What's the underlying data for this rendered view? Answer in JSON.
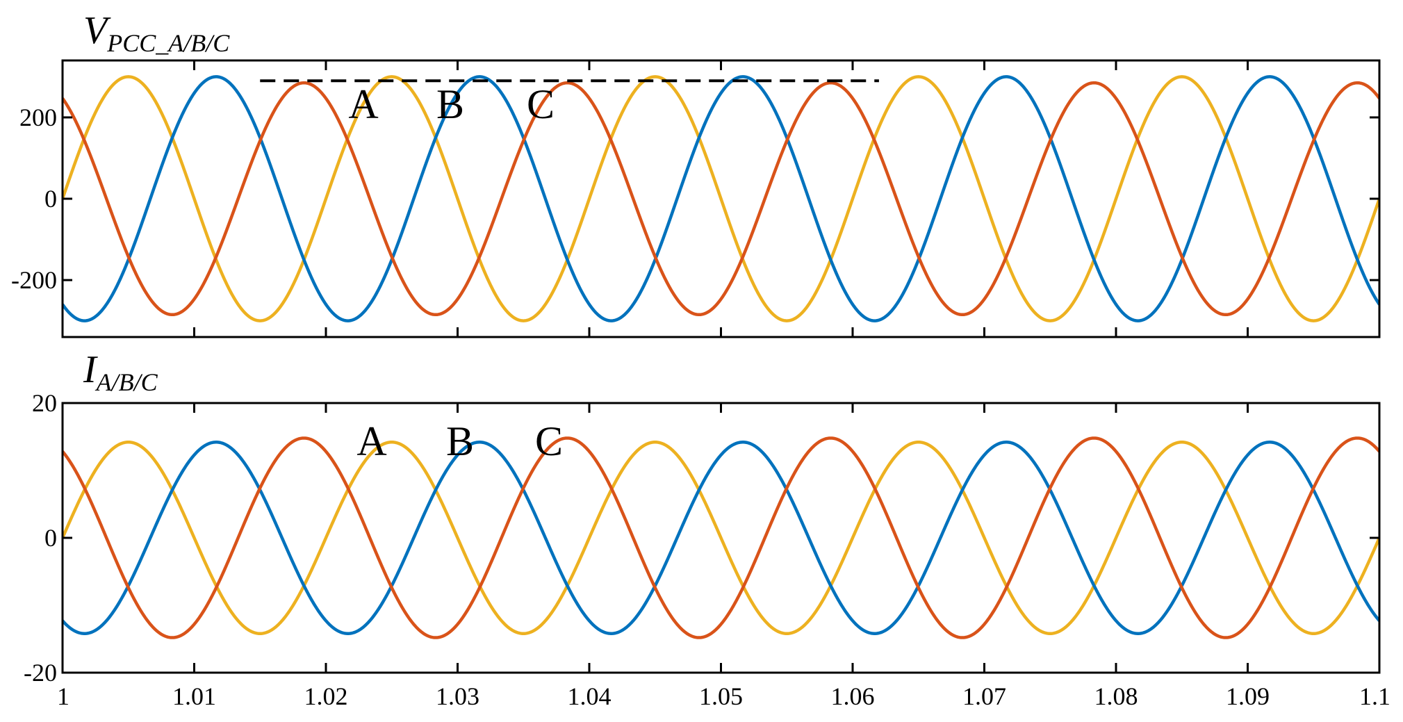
{
  "chart_data": [
    {
      "type": "line",
      "title": {
        "main": "V",
        "subscript": "PCC_A/B/C"
      },
      "xlim": [
        1.0,
        1.1
      ],
      "ylim": [
        -340,
        340
      ],
      "yticks": [
        -200,
        0,
        200
      ],
      "ytick_labels": [
        "-200",
        "0",
        "200"
      ],
      "grid": false,
      "series": [
        {
          "name": "A",
          "color": "#EDB120",
          "amplitude": 300,
          "phase_deg": 0,
          "frequency_hz": 50
        },
        {
          "name": "B",
          "color": "#0072BD",
          "amplitude": 300,
          "phase_deg": -120,
          "frequency_hz": 50
        },
        {
          "name": "C",
          "color": "#D95319",
          "amplitude": 285,
          "phase_deg": 120,
          "frequency_hz": 50
        }
      ],
      "annotations": {
        "phase_labels": [
          "A",
          "B",
          "C"
        ],
        "reference_line": {
          "x_start": 1.015,
          "x_end": 1.062,
          "y": 290,
          "style": "dashed"
        }
      }
    },
    {
      "type": "line",
      "title": {
        "main": "I",
        "subscript": "A/B/C"
      },
      "xlim": [
        1.0,
        1.1
      ],
      "ylim": [
        -20,
        20
      ],
      "yticks": [
        -20,
        0,
        20
      ],
      "ytick_labels": [
        "-20",
        "0",
        "20"
      ],
      "xticks": [
        1.0,
        1.01,
        1.02,
        1.03,
        1.04,
        1.05,
        1.06,
        1.07,
        1.08,
        1.09,
        1.1
      ],
      "xtick_labels": [
        "1",
        "1.01",
        "1.02",
        "1.03",
        "1.04",
        "1.05",
        "1.06",
        "1.07",
        "1.08",
        "1.09",
        "1.1"
      ],
      "grid": false,
      "series": [
        {
          "name": "A",
          "color": "#EDB120",
          "amplitude": 14.2,
          "phase_deg": 0,
          "frequency_hz": 50
        },
        {
          "name": "B",
          "color": "#0072BD",
          "amplitude": 14.2,
          "phase_deg": -120,
          "frequency_hz": 50
        },
        {
          "name": "C",
          "color": "#D95319",
          "amplitude": 14.8,
          "phase_deg": 120,
          "frequency_hz": 50
        }
      ],
      "annotations": {
        "phase_labels": [
          "A",
          "B",
          "C"
        ]
      }
    }
  ]
}
